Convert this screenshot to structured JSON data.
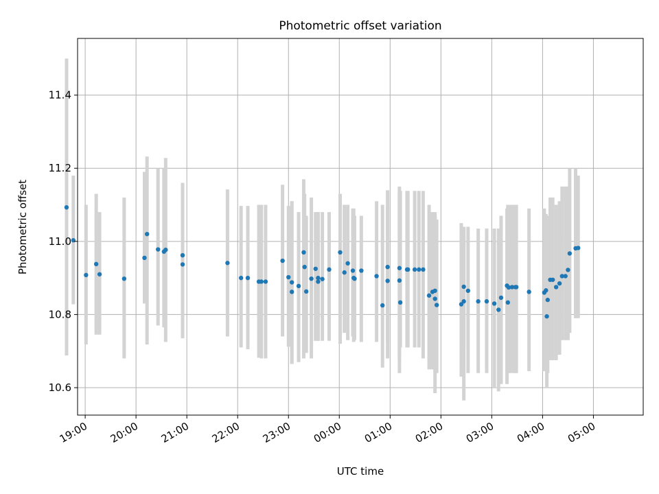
{
  "chart_data": {
    "type": "scatter",
    "title": "Photometric offset variation",
    "xlabel": "UTC time",
    "ylabel": "Photometric offset",
    "x_tick_labels": [
      "19:00",
      "20:00",
      "21:00",
      "22:00",
      "23:00",
      "00:00",
      "01:00",
      "02:00",
      "03:00",
      "04:00",
      "05:00"
    ],
    "y_ticks": [
      10.6,
      10.8,
      11.0,
      11.2,
      11.4
    ],
    "y_tick_labels": [
      "10.6",
      "10.8",
      "11.0",
      "11.2",
      "11.4"
    ],
    "xlim_hours_utc": [
      18.85,
      29.98
    ],
    "ylim": [
      10.525,
      11.555
    ],
    "grid": true,
    "legend": "none",
    "colors": {
      "point": "#1f77b4",
      "errorbar": "#d3d3d3",
      "grid": "#b0b0b0",
      "axes": "#000000"
    },
    "x_times_utc": [
      "18:38",
      "18:46",
      "19:01",
      "19:13",
      "19:17",
      "19:46",
      "20:10",
      "20:13",
      "20:26",
      "20:33",
      "20:35",
      "20:55",
      "20:55",
      "21:48",
      "22:04",
      "22:12",
      "22:25",
      "22:28",
      "22:33",
      "22:53",
      "23:00",
      "23:04",
      "23:04",
      "23:12",
      "23:18",
      "23:19",
      "23:21",
      "23:27",
      "23:32",
      "23:35",
      "23:35",
      "23:40",
      "23:48",
      "24:01",
      "24:06",
      "24:10",
      "24:16",
      "24:17",
      "24:18",
      "24:26",
      "24:44",
      "24:51",
      "24:57",
      "24:57",
      "25:11",
      "25:11",
      "25:12",
      "25:20",
      "25:21",
      "25:29",
      "25:34",
      "25:39",
      "25:46",
      "25:50",
      "25:53",
      "25:53",
      "25:55",
      "26:24",
      "26:27",
      "26:27",
      "26:32",
      "26:44",
      "26:54",
      "27:03",
      "27:08",
      "27:11",
      "27:18",
      "27:19",
      "27:20",
      "27:24",
      "27:28",
      "27:29",
      "27:44",
      "28:02",
      "28:04",
      "28:05",
      "28:06",
      "28:09",
      "28:12",
      "28:16",
      "28:20",
      "28:23",
      "28:27",
      "28:30",
      "28:32",
      "28:39",
      "28:42"
    ],
    "values": [
      11.093,
      11.003,
      10.908,
      10.938,
      10.91,
      10.898,
      10.955,
      11.02,
      10.978,
      10.972,
      10.977,
      10.962,
      10.937,
      10.941,
      10.9,
      10.9,
      10.89,
      10.89,
      10.89,
      10.947,
      10.902,
      10.888,
      10.862,
      10.878,
      10.97,
      10.93,
      10.863,
      10.898,
      10.925,
      10.9,
      10.89,
      10.897,
      10.923,
      10.97,
      10.915,
      10.94,
      10.92,
      10.9,
      10.898,
      10.92,
      10.905,
      10.825,
      10.892,
      10.93,
      10.927,
      10.893,
      10.833,
      10.923,
      10.923,
      10.923,
      10.923,
      10.923,
      10.852,
      10.862,
      10.843,
      10.865,
      10.826,
      10.828,
      10.836,
      10.876,
      10.865,
      10.836,
      10.836,
      10.83,
      10.813,
      10.846,
      10.879,
      10.833,
      10.874,
      10.875,
      10.875,
      10.875,
      10.862,
      10.86,
      10.866,
      10.795,
      10.84,
      10.895,
      10.895,
      10.875,
      10.885,
      10.905,
      10.905,
      10.922,
      10.967,
      10.981,
      10.982
    ],
    "error_low": [
      10.688,
      10.828,
      10.718,
      10.745,
      10.745,
      10.68,
      10.83,
      10.718,
      10.77,
      10.765,
      10.725,
      10.735,
      10.755,
      10.74,
      10.71,
      10.705,
      10.682,
      10.68,
      10.68,
      10.74,
      10.712,
      10.665,
      10.665,
      10.67,
      10.68,
      10.75,
      10.695,
      10.68,
      10.728,
      10.728,
      10.728,
      10.728,
      10.728,
      10.72,
      10.75,
      10.73,
      10.74,
      10.725,
      10.73,
      10.725,
      10.725,
      10.655,
      10.725,
      10.68,
      10.64,
      10.68,
      10.71,
      10.71,
      10.71,
      10.71,
      10.71,
      10.68,
      10.65,
      10.65,
      10.66,
      10.585,
      10.64,
      10.63,
      10.565,
      10.71,
      10.64,
      10.64,
      10.64,
      10.6,
      10.59,
      10.61,
      10.61,
      10.64,
      10.64,
      10.64,
      10.64,
      10.64,
      10.645,
      10.645,
      10.67,
      10.6,
      10.64,
      10.675,
      10.675,
      10.675,
      10.69,
      10.73,
      10.73,
      10.73,
      10.75,
      10.79,
      10.79
    ],
    "error_high": [
      11.5,
      11.18,
      11.1,
      11.13,
      11.08,
      11.12,
      11.19,
      11.232,
      11.2,
      11.2,
      11.228,
      11.14,
      11.16,
      11.142,
      11.097,
      11.097,
      11.1,
      11.1,
      11.1,
      11.155,
      11.097,
      11.11,
      11.11,
      11.08,
      11.17,
      11.13,
      11.07,
      11.12,
      11.08,
      11.08,
      11.08,
      11.08,
      11.08,
      11.13,
      11.1,
      11.1,
      11.09,
      11.09,
      11.07,
      11.07,
      11.11,
      11.1,
      11.1,
      11.14,
      11.15,
      11.138,
      11.138,
      11.138,
      11.138,
      11.138,
      11.138,
      11.138,
      11.1,
      11.08,
      11.08,
      11.07,
      11.06,
      11.05,
      11.035,
      11.04,
      11.04,
      11.035,
      11.035,
      11.035,
      11.035,
      11.07,
      11.09,
      11.1,
      11.1,
      11.1,
      11.1,
      11.1,
      11.09,
      11.09,
      11.075,
      11.06,
      11.07,
      11.12,
      11.12,
      11.1,
      11.11,
      11.15,
      11.15,
      11.15,
      11.2,
      11.2,
      11.18
    ]
  }
}
